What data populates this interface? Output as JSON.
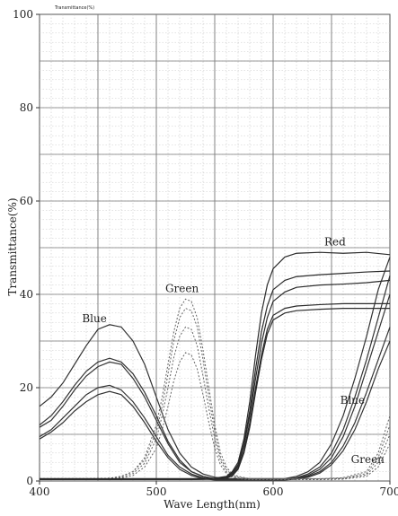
{
  "chart_data": {
    "type": "line",
    "top_title": "Transmittance(%)",
    "xlabel": "Wave Length(nm)",
    "ylabel": "Transmittance(%)",
    "xlim": [
      400,
      700
    ],
    "ylim": [
      0,
      100
    ],
    "x_ticks": [
      400,
      500,
      600,
      700
    ],
    "y_ticks": [
      0,
      20,
      40,
      60,
      80,
      100
    ],
    "grid": true,
    "colors": {
      "blue": "#333333",
      "green": "#666666",
      "red": "#2b2b2b"
    },
    "series_labels": [
      {
        "text": "Blue",
        "x": 447,
        "y": 34
      },
      {
        "text": "Green",
        "x": 522,
        "y": 40.5
      },
      {
        "text": "Red",
        "x": 653,
        "y": 50.5
      },
      {
        "text": "Blue",
        "x": 668,
        "y": 16.5
      },
      {
        "text": "Green",
        "x": 681,
        "y": 3.8
      }
    ],
    "series": [
      {
        "group": "blue",
        "x": [
          400,
          410,
          420,
          430,
          440,
          450,
          460,
          470,
          480,
          490,
          500,
          510,
          520,
          530,
          540,
          550,
          560,
          570,
          580,
          590,
          600,
          610,
          620,
          630,
          640,
          650,
          660,
          670,
          680,
          690,
          700
        ],
        "y": [
          16,
          18,
          21,
          25,
          29,
          32.5,
          33.5,
          33,
          30,
          25,
          18,
          11,
          6,
          3,
          1.5,
          0.8,
          0.5,
          0.5,
          0.5,
          0.5,
          0.5,
          0.5,
          1,
          2,
          4,
          8,
          14,
          22,
          31,
          41,
          48
        ]
      },
      {
        "group": "blue",
        "x": [
          400,
          410,
          420,
          430,
          440,
          450,
          460,
          470,
          480,
          490,
          500,
          510,
          520,
          530,
          540,
          550,
          560,
          570,
          580,
          590,
          600,
          610,
          620,
          630,
          640,
          650,
          660,
          670,
          680,
          690,
          700
        ],
        "y": [
          12,
          14,
          17,
          20.5,
          23.5,
          25.5,
          26.3,
          25.5,
          23,
          19,
          14,
          8.5,
          4.5,
          2,
          1,
          0.5,
          0.3,
          0.3,
          0.3,
          0.3,
          0.3,
          0.4,
          0.7,
          1.5,
          3,
          6,
          11,
          18,
          26,
          35,
          44
        ]
      },
      {
        "group": "blue",
        "x": [
          400,
          410,
          420,
          430,
          440,
          450,
          460,
          470,
          480,
          490,
          500,
          510,
          520,
          530,
          540,
          550,
          560,
          570,
          580,
          590,
          600,
          610,
          620,
          630,
          640,
          650,
          660,
          670,
          680,
          690,
          700
        ],
        "y": [
          11.5,
          13,
          16,
          19.5,
          22.5,
          24.5,
          25.5,
          25,
          22,
          18,
          13,
          8,
          4,
          2,
          1,
          0.4,
          0.3,
          0.3,
          0.3,
          0.3,
          0.3,
          0.3,
          0.6,
          1.2,
          2.5,
          5,
          9.5,
          16,
          24,
          32,
          40
        ]
      },
      {
        "group": "blue",
        "x": [
          400,
          410,
          420,
          430,
          440,
          450,
          460,
          470,
          480,
          490,
          500,
          510,
          520,
          530,
          540,
          550,
          560,
          570,
          580,
          590,
          600,
          610,
          620,
          630,
          640,
          650,
          660,
          670,
          680,
          690,
          700
        ],
        "y": [
          9.5,
          11,
          13.5,
          16,
          18.5,
          20,
          20.5,
          19.5,
          17,
          13.5,
          9.5,
          5.5,
          3,
          1.5,
          0.7,
          0.3,
          0.2,
          0.2,
          0.2,
          0.2,
          0.2,
          0.3,
          0.5,
          1,
          2,
          4,
          7.5,
          12.5,
          19,
          26,
          33
        ]
      },
      {
        "group": "blue",
        "x": [
          400,
          410,
          420,
          430,
          440,
          450,
          460,
          470,
          480,
          490,
          500,
          510,
          520,
          530,
          540,
          550,
          560,
          570,
          580,
          590,
          600,
          610,
          620,
          630,
          640,
          650,
          660,
          670,
          680,
          690,
          700
        ],
        "y": [
          9,
          10.5,
          12.5,
          15,
          17,
          18.5,
          19.2,
          18.5,
          16,
          12.5,
          8.5,
          5,
          2.5,
          1.2,
          0.5,
          0.2,
          0.2,
          0.2,
          0.2,
          0.2,
          0.2,
          0.2,
          0.4,
          0.8,
          1.7,
          3.5,
          6.5,
          11,
          17,
          24,
          30
        ]
      },
      {
        "group": "green",
        "x": [
          400,
          420,
          440,
          460,
          470,
          480,
          490,
          500,
          505,
          510,
          515,
          520,
          525,
          530,
          535,
          540,
          545,
          550,
          555,
          560,
          565,
          570,
          580,
          600,
          620,
          640,
          660,
          680,
          690,
          700
        ],
        "y": [
          0.5,
          0.5,
          0.5,
          0.6,
          1,
          2,
          5,
          12,
          18,
          25,
          32,
          37,
          39,
          38.5,
          35,
          28,
          20,
          12,
          6,
          3,
          1.5,
          1,
          0.5,
          0.5,
          0.5,
          0.5,
          0.7,
          2,
          6,
          14
        ]
      },
      {
        "group": "green",
        "x": [
          400,
          420,
          440,
          460,
          470,
          480,
          490,
          500,
          505,
          510,
          515,
          520,
          525,
          530,
          535,
          540,
          545,
          550,
          555,
          560,
          565,
          570,
          580,
          600,
          620,
          640,
          660,
          680,
          690,
          700
        ],
        "y": [
          0.5,
          0.5,
          0.5,
          0.6,
          1,
          2,
          4.5,
          10.5,
          16,
          23,
          30,
          35,
          37,
          36.5,
          33,
          26,
          18,
          10.5,
          5,
          2.5,
          1.2,
          0.8,
          0.5,
          0.5,
          0.5,
          0.5,
          0.6,
          1.6,
          5,
          12
        ]
      },
      {
        "group": "green",
        "x": [
          400,
          420,
          440,
          460,
          470,
          480,
          490,
          500,
          505,
          510,
          515,
          520,
          525,
          530,
          535,
          540,
          545,
          550,
          555,
          560,
          565,
          570,
          580,
          600,
          620,
          640,
          660,
          680,
          690,
          700
        ],
        "y": [
          0.4,
          0.4,
          0.4,
          0.5,
          0.8,
          1.6,
          3.8,
          9,
          14,
          20,
          26.5,
          31,
          33,
          32.5,
          29,
          22.5,
          15.5,
          9,
          4.3,
          2,
          1,
          0.6,
          0.4,
          0.4,
          0.4,
          0.4,
          0.5,
          1.3,
          4,
          10
        ]
      },
      {
        "group": "green",
        "x": [
          400,
          420,
          440,
          460,
          470,
          480,
          490,
          500,
          505,
          510,
          515,
          520,
          525,
          530,
          535,
          540,
          545,
          550,
          555,
          560,
          565,
          570,
          580,
          600,
          620,
          640,
          660,
          680,
          690,
          700
        ],
        "y": [
          0.3,
          0.3,
          0.3,
          0.4,
          0.6,
          1.2,
          3,
          7,
          11,
          16,
          21.5,
          25.5,
          27.5,
          27,
          24,
          18.5,
          12.5,
          7,
          3.4,
          1.6,
          0.8,
          0.5,
          0.3,
          0.3,
          0.3,
          0.3,
          0.4,
          1,
          3,
          8
        ]
      },
      {
        "group": "red",
        "x": [
          400,
          450,
          500,
          530,
          550,
          560,
          565,
          570,
          575,
          580,
          585,
          590,
          595,
          600,
          610,
          620,
          640,
          660,
          680,
          700
        ],
        "y": [
          0.5,
          0.5,
          0.5,
          0.5,
          0.6,
          1,
          2,
          4,
          9,
          17,
          27,
          36,
          42,
          45.5,
          48,
          48.8,
          49,
          48.8,
          49,
          48.5
        ]
      },
      {
        "group": "red",
        "x": [
          400,
          450,
          500,
          530,
          550,
          560,
          565,
          570,
          575,
          580,
          585,
          590,
          595,
          600,
          610,
          620,
          640,
          660,
          680,
          700
        ],
        "y": [
          0.4,
          0.4,
          0.4,
          0.4,
          0.5,
          0.8,
          1.7,
          3.5,
          8,
          15,
          24,
          32,
          37.5,
          41,
          43,
          43.8,
          44.2,
          44.5,
          44.8,
          45
        ]
      },
      {
        "group": "red",
        "x": [
          400,
          450,
          500,
          530,
          550,
          560,
          565,
          570,
          575,
          580,
          585,
          590,
          595,
          600,
          610,
          620,
          640,
          660,
          680,
          700
        ],
        "y": [
          0.4,
          0.4,
          0.4,
          0.4,
          0.5,
          0.7,
          1.5,
          3.2,
          7.5,
          14,
          22,
          29.5,
          35,
          38.5,
          40.5,
          41.5,
          42,
          42.2,
          42.5,
          43
        ]
      },
      {
        "group": "red",
        "x": [
          400,
          450,
          500,
          530,
          550,
          560,
          565,
          570,
          575,
          580,
          585,
          590,
          595,
          600,
          610,
          620,
          640,
          660,
          680,
          700
        ],
        "y": [
          0.3,
          0.3,
          0.3,
          0.3,
          0.4,
          0.6,
          1.2,
          2.8,
          6.5,
          12.5,
          20,
          27,
          32.5,
          35.5,
          37,
          37.5,
          37.8,
          38,
          38,
          38
        ]
      },
      {
        "group": "red",
        "x": [
          400,
          450,
          500,
          530,
          550,
          560,
          565,
          570,
          575,
          580,
          585,
          590,
          595,
          600,
          610,
          620,
          640,
          660,
          680,
          700
        ],
        "y": [
          0.3,
          0.3,
          0.3,
          0.3,
          0.4,
          0.6,
          1.1,
          2.5,
          6,
          11.5,
          19,
          26,
          31.5,
          34.5,
          36,
          36.5,
          36.8,
          37,
          37,
          37
        ]
      }
    ]
  }
}
